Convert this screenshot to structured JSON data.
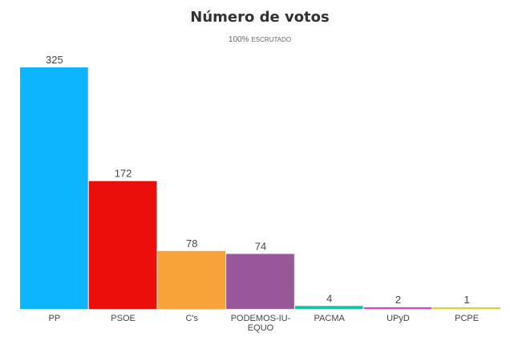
{
  "chart_data": {
    "type": "bar",
    "title": "Número de votos",
    "subtitle_pct": "100%",
    "subtitle_word": "ESCRUTADO",
    "xlabel": "",
    "ylabel": "",
    "ylim": [
      0,
      325
    ],
    "grid": false,
    "legend": "none",
    "bars": [
      {
        "label": [
          "PP"
        ],
        "value": 325,
        "value_label": "325",
        "color": "#0db4ff"
      },
      {
        "label": [
          "PSOE"
        ],
        "value": 172,
        "value_label": "172",
        "color": "#ec0e0a"
      },
      {
        "label": [
          "C's"
        ],
        "value": 78,
        "value_label": "78",
        "color": "#f8a23a"
      },
      {
        "label": [
          "PODEMOS-IU-",
          "EQUO"
        ],
        "value": 74,
        "value_label": "74",
        "color": "#995699"
      },
      {
        "label": [
          "PACMA"
        ],
        "value": 4,
        "value_label": "4",
        "color": "#19c29f"
      },
      {
        "label": [
          "UPyD"
        ],
        "value": 2,
        "value_label": "2",
        "color": "#e13fc8"
      },
      {
        "label": [
          "PCPE"
        ],
        "value": 1,
        "value_label": "1",
        "color": "#e7d32b"
      }
    ]
  }
}
